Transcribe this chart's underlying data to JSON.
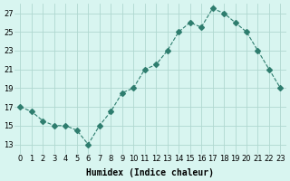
{
  "x": [
    0,
    1,
    2,
    3,
    4,
    5,
    6,
    7,
    8,
    9,
    10,
    11,
    12,
    13,
    14,
    15,
    16,
    17,
    18,
    19,
    20,
    21,
    22,
    23
  ],
  "y": [
    17,
    16.5,
    15.5,
    15,
    15,
    14.5,
    13,
    15,
    16.5,
    18.5,
    19,
    21,
    21.5,
    23,
    25,
    26,
    25.5,
    27.5,
    27,
    26,
    25,
    23,
    21,
    19
  ],
  "line_color": "#2e7d6e",
  "marker": "D",
  "marker_size": 3,
  "line_width": 0.8,
  "bg_color": "#d8f5f0",
  "grid_color": "#b0d8d0",
  "xlabel": "Humidex (Indice chaleur)",
  "ylim": [
    12,
    28
  ],
  "xlim": [
    -0.5,
    23.5
  ],
  "yticks": [
    13,
    15,
    17,
    19,
    21,
    23,
    25,
    27
  ],
  "xticks": [
    0,
    1,
    2,
    3,
    4,
    5,
    6,
    7,
    8,
    9,
    10,
    11,
    12,
    13,
    14,
    15,
    16,
    17,
    18,
    19,
    20,
    21,
    22,
    23
  ],
  "tick_fontsize": 6,
  "xlabel_fontsize": 7
}
